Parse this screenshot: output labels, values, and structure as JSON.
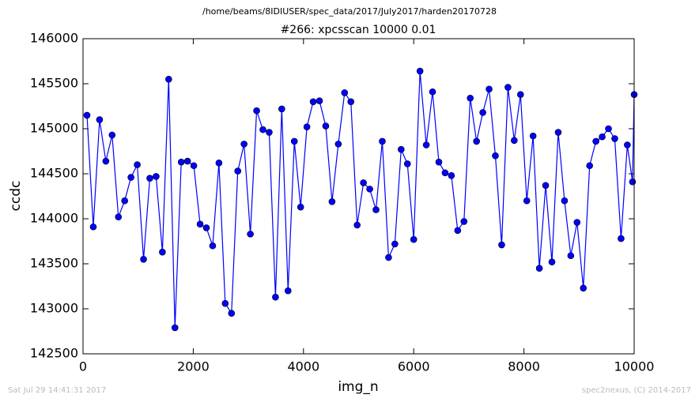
{
  "chart_data": {
    "type": "line",
    "title": "/home/beams/8IDIUSER/spec_data/2017/July2017/harden20170728",
    "subtitle": "#266: xpcsscan 10000 0.01",
    "x_label": "img_n",
    "y_label": "ccdc",
    "footer_left": "Sat Jul 29 14:41:31 2017",
    "footer_right": "spec2nexus, (C) 2014-2017",
    "x": [
      72,
      186,
      300,
      414,
      528,
      642,
      756,
      870,
      984,
      1098,
      1212,
      1326,
      1440,
      1554,
      1668,
      1782,
      1896,
      2010,
      2124,
      2238,
      2352,
      2466,
      2580,
      2694,
      2808,
      2922,
      3036,
      3150,
      3264,
      3378,
      3492,
      3606,
      3720,
      3834,
      3948,
      4062,
      4176,
      4290,
      4404,
      4518,
      4632,
      4746,
      4860,
      4974,
      5088,
      5202,
      5316,
      5430,
      5544,
      5658,
      5772,
      5886,
      6000,
      6114,
      6228,
      6342,
      6456,
      6570,
      6684,
      6798,
      6912,
      7026,
      7140,
      7254,
      7368,
      7482,
      7596,
      7710,
      7824,
      7938,
      8052,
      8166,
      8280,
      8394,
      8508,
      8622,
      8736,
      8850,
      8964,
      9078,
      9192,
      9306,
      9420,
      9534,
      9648,
      9762,
      9876,
      9970,
      10000
    ],
    "series": [
      {
        "color": "#0000ff",
        "values": [
          145150,
          143910,
          145100,
          144640,
          144930,
          144020,
          144200,
          144460,
          144600,
          143550,
          144450,
          144470,
          143630,
          145550,
          142790,
          144630,
          144640,
          144590,
          143940,
          143900,
          143700,
          144620,
          143060,
          142950,
          144530,
          144830,
          143830,
          145200,
          144990,
          144960,
          143130,
          145220,
          143200,
          144860,
          144130,
          145020,
          145300,
          145310,
          145030,
          144190,
          144830,
          145400,
          145300,
          143930,
          144400,
          144330,
          144100,
          144860,
          143570,
          143720,
          144770,
          144610,
          143770,
          145640,
          144820,
          145410,
          144630,
          144510,
          144480,
          143870,
          143970,
          145340,
          144860,
          145180,
          145440,
          144700,
          143710,
          145460,
          144870,
          145380,
          144200,
          144920,
          143450,
          144370,
          143520,
          144960,
          144200,
          143590,
          143960,
          143230,
          144590,
          144860,
          144910,
          145000,
          144890,
          143780,
          144820,
          144410,
          145380
        ]
      }
    ],
    "xlim": [
      0,
      10000
    ],
    "xticks": [
      0,
      2000,
      4000,
      6000,
      8000,
      10000
    ],
    "ylim": [
      142500,
      146000
    ],
    "yticks": [
      142500,
      143000,
      143500,
      144000,
      144500,
      145000,
      145500,
      146000
    ],
    "grid": false
  }
}
